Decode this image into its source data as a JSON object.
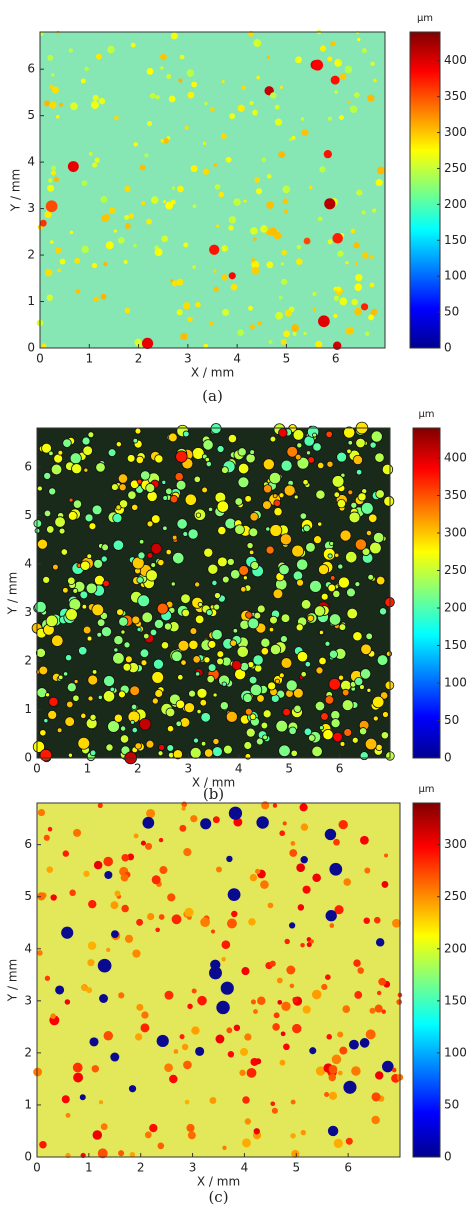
{
  "chart_data": [
    {
      "type": "heatmap",
      "colormap": "jet",
      "background": "#86e6b4",
      "xlabel": "X / mm",
      "ylabel": "Y / mm",
      "xlim": [
        0,
        7
      ],
      "xticks": [
        0,
        1,
        2,
        3,
        4,
        5,
        6
      ],
      "ylim": [
        0,
        6.8
      ],
      "yticks": [
        0,
        1,
        2,
        3,
        4,
        5,
        6
      ],
      "colorbar_label": "µm",
      "clim": [
        0,
        440
      ],
      "cticks": [
        0,
        50,
        100,
        150,
        200,
        250,
        300,
        350,
        400
      ],
      "caption": "(a)"
    },
    {
      "type": "heatmap",
      "colormap": "jet",
      "background": "#1a2a1a",
      "xlabel": "X / mm",
      "ylabel": "Y / mm",
      "xlim": [
        0,
        7
      ],
      "xticks": [
        0,
        1,
        2,
        3,
        4,
        5,
        6
      ],
      "ylim": [
        0,
        6.8
      ],
      "yticks": [
        0,
        1,
        2,
        3,
        4,
        5,
        6
      ],
      "colorbar_label": "µm",
      "clim": [
        0,
        440
      ],
      "cticks": [
        0,
        50,
        100,
        150,
        200,
        250,
        300,
        350,
        400
      ],
      "caption": "(b)"
    },
    {
      "type": "heatmap",
      "colormap": "jet",
      "background": "#e2e85a",
      "xlabel": "X / mm",
      "ylabel": "Y / mm",
      "xlim": [
        0,
        7
      ],
      "xticks": [
        0,
        1,
        2,
        3,
        4,
        5,
        6
      ],
      "ylim": [
        0,
        6.8
      ],
      "yticks": [
        0,
        1,
        2,
        3,
        4,
        5,
        6
      ],
      "colorbar_label": "µm",
      "clim": [
        0,
        340
      ],
      "cticks": [
        0,
        50,
        100,
        150,
        200,
        250,
        300
      ],
      "caption": "(c)"
    }
  ]
}
